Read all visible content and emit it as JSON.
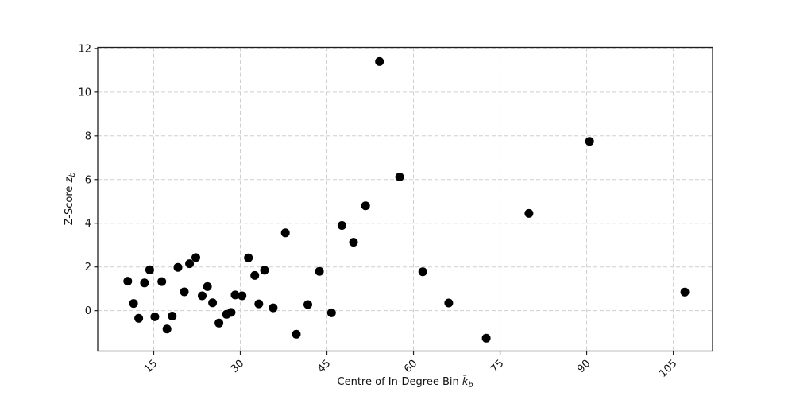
{
  "chart_data": {
    "type": "scatter",
    "title": "",
    "xlabel": "Centre of In-Degree Bin k̄b",
    "xlabel_parts": {
      "text": "Centre of In-Degree Bin ",
      "symbol": "k̄",
      "sub": "b"
    },
    "ylabel": "Z-Score zb",
    "ylabel_parts": {
      "text": "Z-Score ",
      "symbol": "z",
      "sub": "b"
    },
    "x_ticks": [
      15,
      30,
      45,
      60,
      75,
      90,
      105
    ],
    "x_tick_labels": [
      "15",
      "30",
      "45",
      "60",
      "75",
      "90",
      "105"
    ],
    "x_tick_rotation": 45,
    "y_ticks": [
      0,
      2,
      4,
      6,
      8,
      10,
      12
    ],
    "y_tick_labels": [
      "0",
      "2",
      "4",
      "6",
      "8",
      "10",
      "12"
    ],
    "xlim": [
      5.3,
      111.8
    ],
    "ylim": [
      -1.85,
      12.05
    ],
    "grid": true,
    "grid_linestyle": "dashed",
    "legend_position": "none",
    "marker": {
      "shape": "circle",
      "color": "#000000",
      "radius_px": 5.5
    },
    "colors": {
      "background": "#ffffff",
      "grid": "#cfcfcf",
      "spine": "#1f1f1f",
      "tick_text": "#111111",
      "marker": "#000000"
    },
    "points": [
      [
        10.5,
        1.35
      ],
      [
        11.5,
        0.33
      ],
      [
        12.4,
        -0.35
      ],
      [
        13.4,
        1.27
      ],
      [
        14.3,
        1.87
      ],
      [
        15.2,
        -0.28
      ],
      [
        16.4,
        1.33
      ],
      [
        17.3,
        -0.84
      ],
      [
        18.2,
        -0.25
      ],
      [
        19.2,
        1.98
      ],
      [
        20.3,
        0.86
      ],
      [
        21.2,
        2.15
      ],
      [
        22.3,
        2.43
      ],
      [
        23.4,
        0.68
      ],
      [
        24.3,
        1.1
      ],
      [
        25.2,
        0.36
      ],
      [
        26.3,
        -0.57
      ],
      [
        27.6,
        -0.17
      ],
      [
        28.4,
        -0.08
      ],
      [
        29.1,
        0.72
      ],
      [
        30.3,
        0.68
      ],
      [
        31.4,
        2.42
      ],
      [
        32.5,
        1.61
      ],
      [
        33.2,
        0.31
      ],
      [
        34.2,
        1.85
      ],
      [
        35.7,
        0.13
      ],
      [
        37.8,
        3.56
      ],
      [
        39.7,
        -1.08
      ],
      [
        41.7,
        0.28
      ],
      [
        43.7,
        1.8
      ],
      [
        45.8,
        -0.1
      ],
      [
        47.6,
        3.9
      ],
      [
        49.6,
        3.13
      ],
      [
        51.7,
        4.8
      ],
      [
        54.1,
        11.4
      ],
      [
        57.6,
        6.12
      ],
      [
        61.6,
        1.78
      ],
      [
        66.1,
        0.35
      ],
      [
        72.6,
        -1.26
      ],
      [
        80.0,
        4.45
      ],
      [
        90.5,
        7.75
      ],
      [
        107.0,
        0.85
      ]
    ]
  }
}
